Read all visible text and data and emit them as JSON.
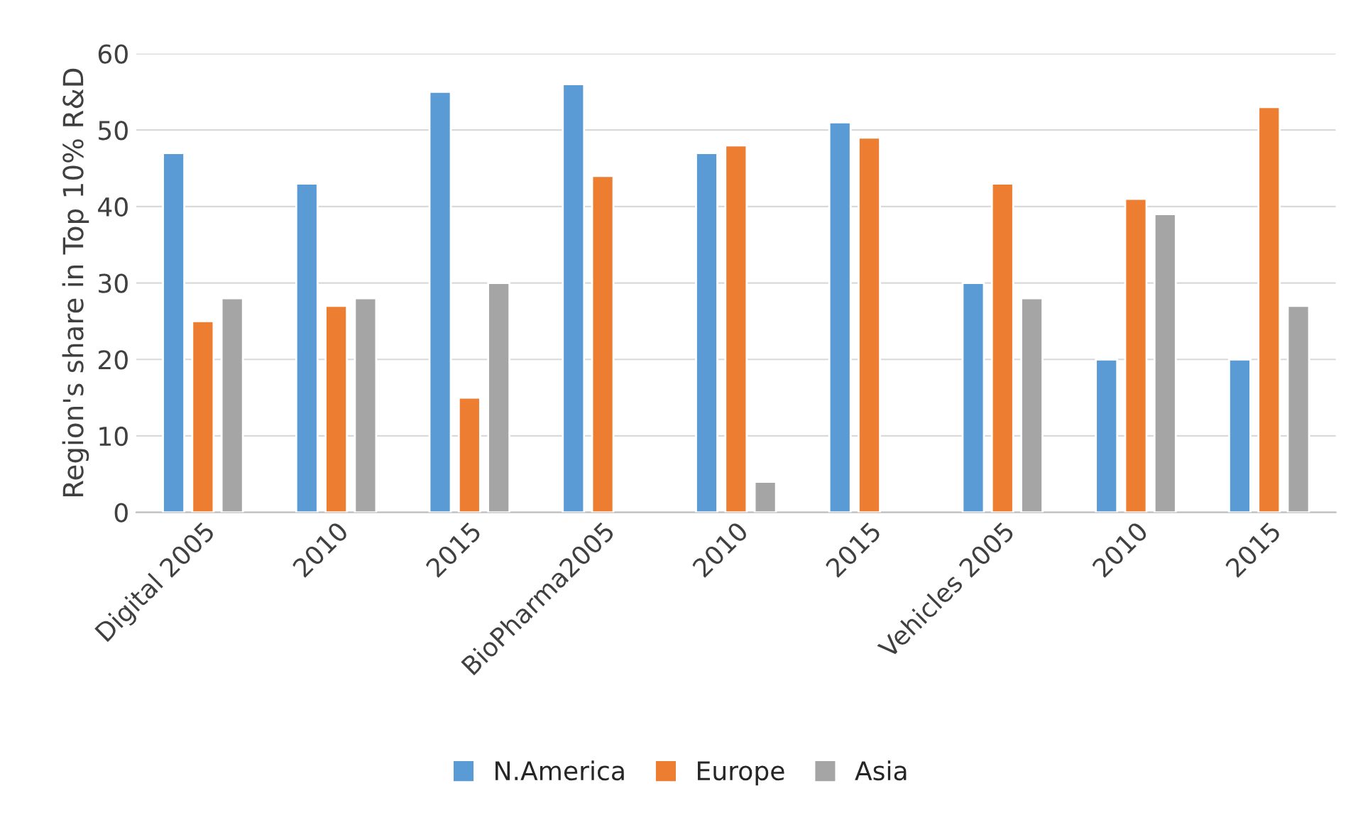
{
  "chart_data": {
    "type": "bar",
    "ylabel": "Region's share in Top 10% R&D",
    "categories": [
      "Digital 2005",
      "2010",
      "2015",
      "BioPharma2005",
      "2010",
      "2015",
      "Vehicles 2005",
      "2010",
      "2015"
    ],
    "series": [
      {
        "name": "N.America",
        "color": "#5b9bd5",
        "values": [
          47,
          43,
          55,
          56,
          47,
          51,
          30,
          20,
          20
        ]
      },
      {
        "name": "Europe",
        "color": "#ed7d31",
        "values": [
          25,
          27,
          15,
          44,
          48,
          49,
          43,
          41,
          53
        ]
      },
      {
        "name": "Asia",
        "color": "#a5a5a5",
        "values": [
          28,
          28,
          30,
          null,
          4,
          null,
          28,
          39,
          27
        ]
      }
    ],
    "ylim": [
      0,
      60
    ],
    "yticks": [
      0,
      10,
      20,
      30,
      40,
      50,
      60
    ],
    "grid": "y",
    "legend": "bottom"
  }
}
